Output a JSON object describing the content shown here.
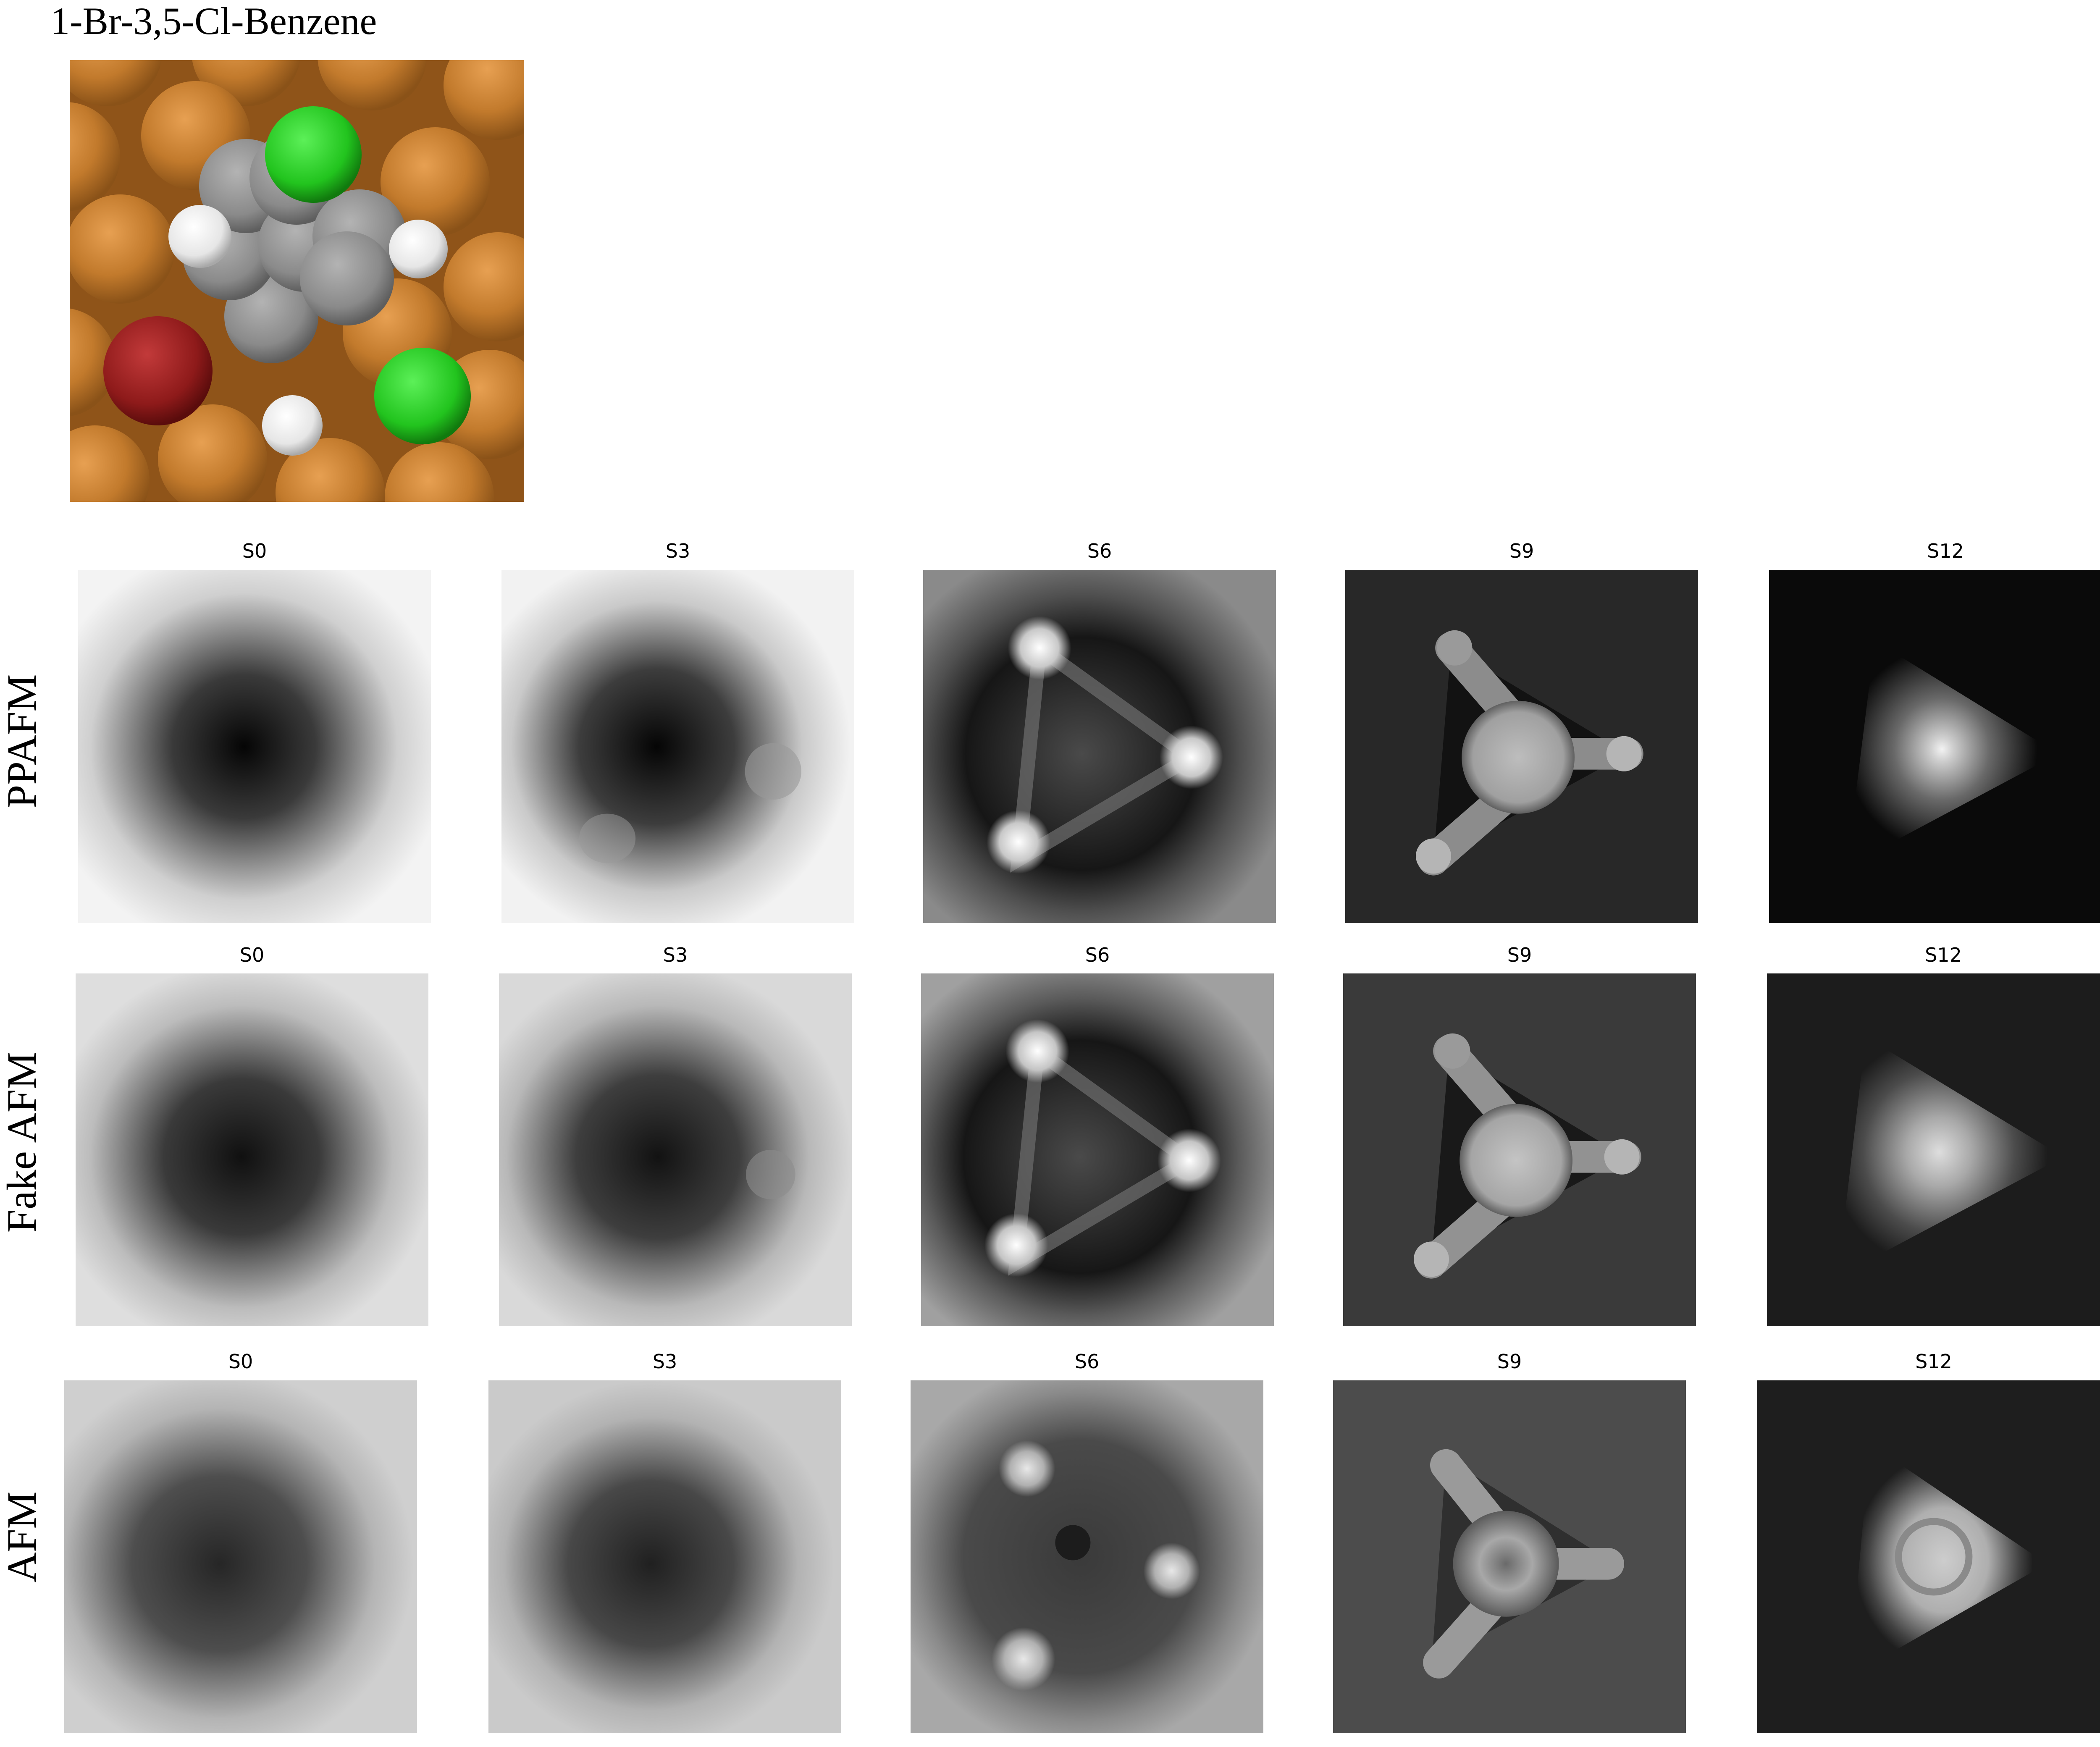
{
  "figure": {
    "molecule_title": "1-Br-3,5-Cl-Benzene",
    "rows": [
      {
        "label": "PPAFM",
        "panels": [
          "S0",
          "S3",
          "S6",
          "S9",
          "S12"
        ]
      },
      {
        "label": "Fake AFM",
        "panels": [
          "S0",
          "S3",
          "S6",
          "S9",
          "S12"
        ]
      },
      {
        "label": "AFM",
        "panels": [
          "S0",
          "S3",
          "S6",
          "S9",
          "S12"
        ]
      }
    ],
    "colors": {
      "copper": "#c27a2c",
      "carbon": "#8a8a8a",
      "hydrogen": "#f2f2f2",
      "chlorine": "#22c41e",
      "bromine": "#8e1a1a"
    }
  }
}
